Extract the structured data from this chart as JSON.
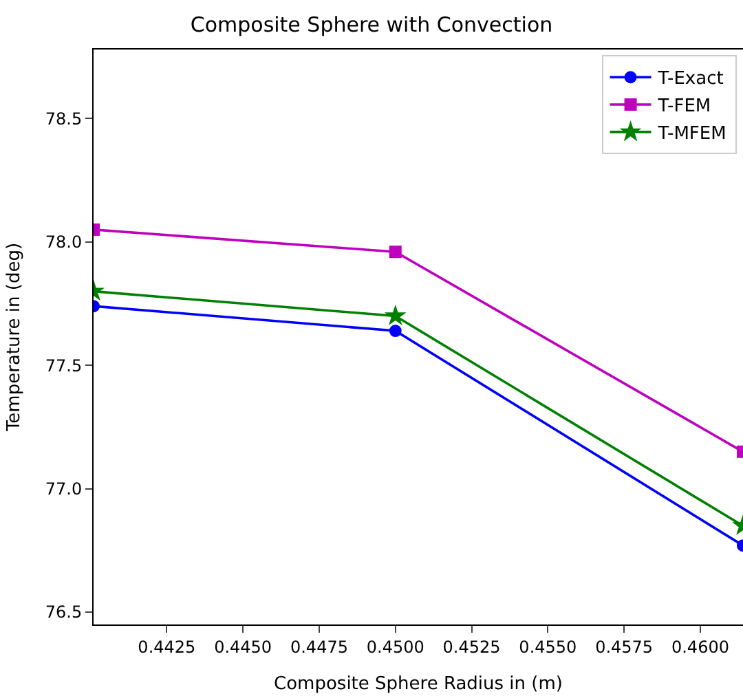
{
  "chart_data": {
    "type": "line",
    "title": "Composite Sphere with Convection",
    "xlabel": "Composite Sphere Radius in (m)",
    "ylabel": "Temperature in (deg)",
    "x": [
      0.4401,
      0.45,
      0.4614
    ],
    "series": [
      {
        "name": "T-Exact",
        "color": "#0000ff",
        "marker": "circle",
        "values": [
          77.74,
          77.64,
          76.77
        ]
      },
      {
        "name": "T-FEM",
        "color": "#bf00bf",
        "marker": "square",
        "values": [
          78.05,
          77.96,
          77.15
        ]
      },
      {
        "name": "T-MFEM",
        "color": "#008000",
        "marker": "star",
        "values": [
          77.8,
          77.7,
          76.85
        ]
      }
    ],
    "xlim": [
      0.4401,
      0.4614
    ],
    "xticks": [
      0.4425,
      {
        "value": 0.445,
        "label": "0.4450"
      },
      0.4475,
      {
        "value": 0.45,
        "label": "0.4500"
      },
      0.4525,
      {
        "value": 0.455,
        "label": "0.4550"
      },
      0.4575,
      {
        "value": 0.46,
        "label": "0.4600"
      }
    ],
    "ylim": [
      76.45,
      78.78
    ],
    "yticks": [
      76.5,
      {
        "value": 77,
        "label": "77.0"
      },
      77.5,
      {
        "value": 78,
        "label": "78.0"
      },
      78.5
    ],
    "legend": "top right",
    "line_style": "solid"
  }
}
